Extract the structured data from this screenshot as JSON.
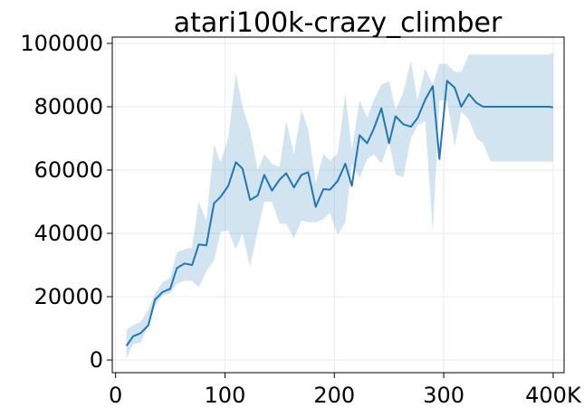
{
  "chart_data": {
    "type": "line",
    "title": "atari100k-crazy_climber",
    "xlabel": "",
    "ylabel": "",
    "xlim": [
      -3,
      410
    ],
    "ylim": [
      -4000,
      102000
    ],
    "xticks": [
      0,
      100,
      200,
      300,
      400
    ],
    "xtick_labels": [
      "0",
      "100",
      "200",
      "300",
      "400K"
    ],
    "yticks": [
      0,
      20000,
      40000,
      60000,
      80000,
      100000
    ],
    "ytick_labels": [
      "0",
      "20000",
      "40000",
      "60000",
      "80000",
      "100000"
    ],
    "grid": true,
    "colors": {
      "line": "#1f77b4",
      "band": "#1f77b4",
      "band_opacity": 0.2,
      "grid": "#ebebeb"
    },
    "series": [
      {
        "x": [
          10,
          16,
          23,
          30,
          36,
          43,
          50,
          56,
          63,
          70,
          76,
          83,
          90,
          96,
          103,
          110,
          116,
          123,
          130,
          136,
          143,
          150,
          156,
          163,
          170,
          176,
          183,
          190,
          196,
          203,
          210,
          216,
          223,
          230,
          236,
          243,
          250,
          256,
          263,
          270,
          276,
          283,
          290,
          296,
          303,
          310,
          316,
          323,
          330,
          336,
          343,
          350,
          356,
          363,
          370,
          376,
          383,
          390,
          396,
          400
        ],
        "y": [
          4500,
          7500,
          8500,
          11000,
          19000,
          21500,
          22500,
          29000,
          30500,
          30000,
          36500,
          36200,
          49500,
          51500,
          55000,
          62500,
          60500,
          50500,
          52000,
          58500,
          53500,
          57000,
          59000,
          54500,
          58500,
          59300,
          48400,
          54000,
          53800,
          56500,
          62000,
          55000,
          71000,
          68500,
          73000,
          79500,
          68500,
          77000,
          74500,
          73700,
          76400,
          82200,
          86500,
          63500,
          88200,
          86000,
          80000,
          84000,
          81200,
          80000,
          80000,
          80000,
          80000,
          80000,
          80000,
          80000,
          80000,
          80000,
          80000,
          79800
        ],
        "lower": [
          500,
          5000,
          5500,
          11000,
          17000,
          20500,
          21000,
          24000,
          25000,
          25000,
          23000,
          28000,
          31500,
          40500,
          41000,
          35000,
          40000,
          29500,
          41000,
          50000,
          50000,
          43000,
          43000,
          38500,
          44000,
          43500,
          43500,
          44500,
          46500,
          39500,
          43500,
          62000,
          57500,
          63500,
          65000,
          62000,
          69000,
          58500,
          57800,
          70000,
          74000,
          75500,
          40500,
          82000,
          82000,
          67500,
          78500,
          76000,
          70000,
          68500,
          62700,
          62700,
          62700,
          62700,
          62700,
          62700,
          62700,
          62700,
          62700,
          62700
        ],
        "upper": [
          9500,
          11000,
          12000,
          16000,
          21000,
          24500,
          26000,
          34000,
          35000,
          35500,
          50000,
          44000,
          68000,
          62500,
          70000,
          90500,
          80000,
          72500,
          60000,
          65000,
          62000,
          61000,
          75500,
          65000,
          79000,
          73000,
          56000,
          65000,
          63000,
          65000,
          84000,
          66500,
          82000,
          76500,
          82000,
          87000,
          88000,
          79000,
          84500,
          94500,
          82000,
          92000,
          87000,
          93500,
          93500,
          91000,
          91000,
          96500,
          96500,
          96500,
          96500,
          96500,
          96500,
          96500,
          96500,
          96500,
          96500,
          96500,
          96500,
          97000
        ]
      }
    ]
  }
}
